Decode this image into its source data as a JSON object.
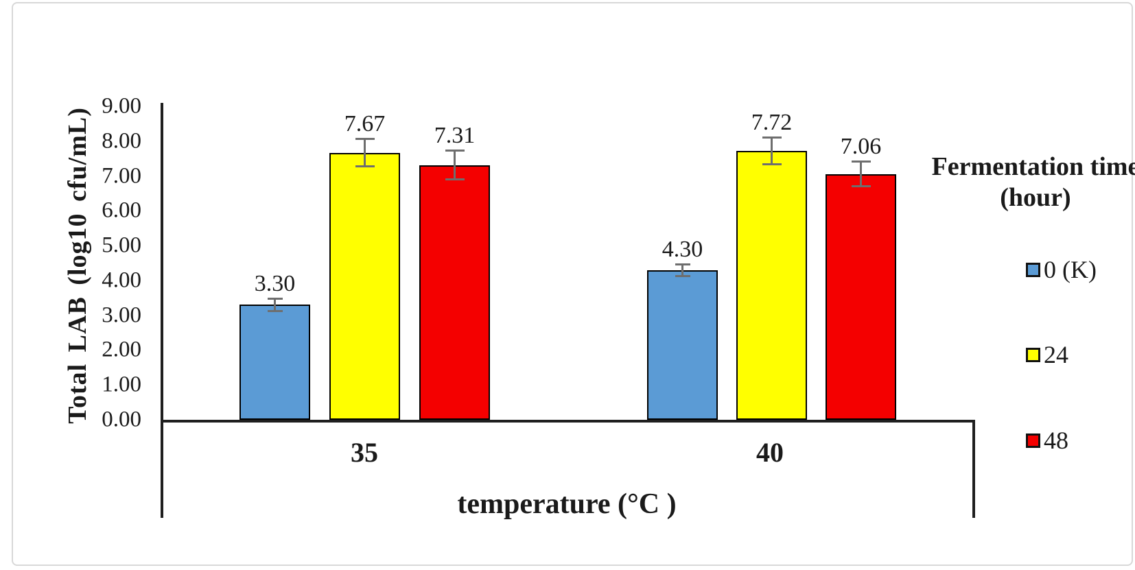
{
  "chart_data": {
    "type": "bar",
    "title": "",
    "categories": [
      "35",
      "40"
    ],
    "series": [
      {
        "name": "0 (K)",
        "color": "#5B9BD5",
        "values": [
          3.3,
          4.3
        ],
        "value_labels": [
          "3.30",
          "4.30"
        ],
        "errors": [
          0.18,
          0.18
        ]
      },
      {
        "name": "24",
        "color": "#FFFF00",
        "values": [
          7.67,
          7.72
        ],
        "value_labels": [
          "7.67",
          "7.72"
        ],
        "errors": [
          0.41,
          0.4
        ]
      },
      {
        "name": "48",
        "color": "#F40000",
        "values": [
          7.31,
          7.06
        ],
        "value_labels": [
          "7.31",
          "7.06"
        ],
        "errors": [
          0.42,
          0.37
        ]
      }
    ],
    "xlabel": "temperature (°C )",
    "ylabel": "Total LAB (log10 cfu/mL)",
    "legend_title": "Fermentation time (hour)",
    "legend_position": "right",
    "ylim": [
      0,
      9
    ],
    "ytick_labels": [
      "0.00",
      "1.00",
      "2.00",
      "3.00",
      "4.00",
      "5.00",
      "6.00",
      "7.00",
      "8.00",
      "9.00"
    ],
    "grid": false,
    "bar_edge_color": "#000000",
    "error_bar_color": "#6E6E6E",
    "accent_colors": {
      "blue": "#5B9BD5",
      "yellow": "#FFFF00",
      "red": "#F40000"
    }
  }
}
